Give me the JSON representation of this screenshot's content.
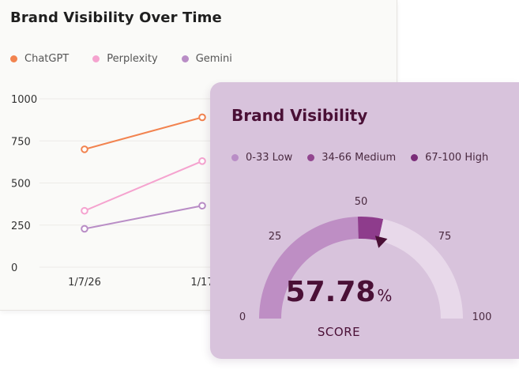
{
  "visibility_chart": {
    "title": "Brand Visibility Over Time",
    "legend": [
      {
        "name": "ChatGPT",
        "color": "#f2834f"
      },
      {
        "name": "Perplexity",
        "color": "#f5a3cf"
      },
      {
        "name": "Gemini",
        "color": "#b98dc6"
      }
    ]
  },
  "chart_data": {
    "type": "line",
    "title": "Brand Visibility Over Time",
    "x": [
      "1/7/26",
      "1/17"
    ],
    "ylim": [
      0,
      1000
    ],
    "yticks": [
      0,
      250,
      500,
      750,
      1000
    ],
    "grid": true,
    "legend_position": "top-left",
    "series": [
      {
        "name": "ChatGPT",
        "color": "#f2834f",
        "values": [
          700,
          890
        ]
      },
      {
        "name": "Perplexity",
        "color": "#f5a3cf",
        "values": [
          335,
          630
        ]
      },
      {
        "name": "Gemini",
        "color": "#b98dc6",
        "values": [
          228,
          365
        ]
      }
    ]
  },
  "gauge": {
    "title": "Brand Visibility",
    "legend": [
      {
        "label": "0-33 Low",
        "color": "#b98dc6"
      },
      {
        "label": "34-66 Medium",
        "color": "#92468f"
      },
      {
        "label": "67-100 High",
        "color": "#7a2c78"
      }
    ],
    "ticks": [
      "0",
      "25",
      "50",
      "75",
      "100"
    ],
    "score": "57.78",
    "score_unit": "%",
    "score_label": "SCORE",
    "value": 57.78,
    "colors": {
      "low": "#be8ec4",
      "medium": "#8e3c8c",
      "high": "#e8d9ea",
      "needle": "#4a1036"
    }
  }
}
